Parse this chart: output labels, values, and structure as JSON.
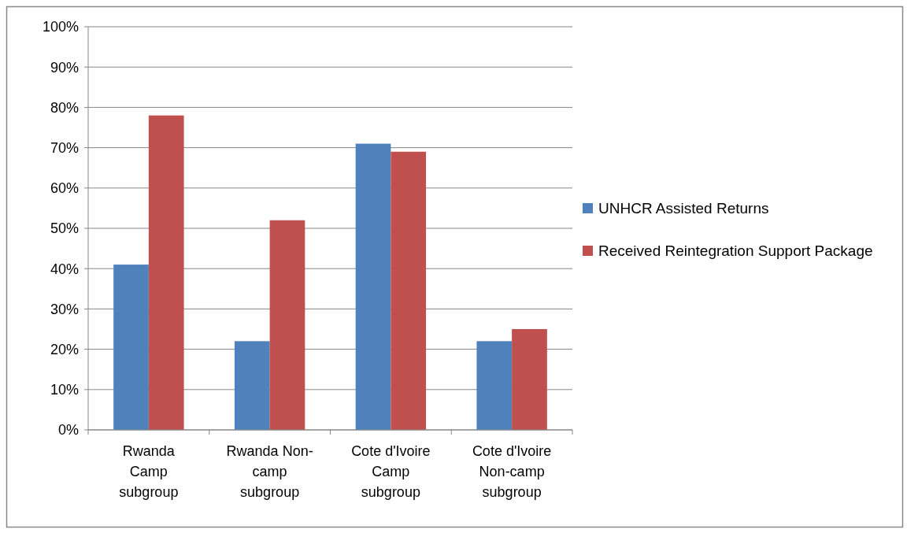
{
  "chart_data": {
    "type": "bar",
    "categories": [
      "Rwanda Camp subgroup",
      "Rwanda Non-camp subgroup",
      "Cote d'Ivoire Camp subgroup",
      "Cote d'Ivoire Non-camp subgroup"
    ],
    "series": [
      {
        "name": "UNHCR Assisted Returns",
        "color": "#4f81bd",
        "values": [
          41,
          22,
          71,
          22
        ]
      },
      {
        "name": "Received Reintegration Support Package",
        "color": "#c0504d",
        "values": [
          78,
          52,
          69,
          25
        ]
      }
    ],
    "ylim": [
      0,
      100
    ],
    "yticks": [
      {
        "value": 0,
        "label": "0%"
      },
      {
        "value": 10,
        "label": "10%"
      },
      {
        "value": 20,
        "label": "20%"
      },
      {
        "value": 30,
        "label": "30%"
      },
      {
        "value": 40,
        "label": "40%"
      },
      {
        "value": 50,
        "label": "50%"
      },
      {
        "value": 60,
        "label": "60%"
      },
      {
        "value": 70,
        "label": "70%"
      },
      {
        "value": 80,
        "label": "80%"
      },
      {
        "value": 90,
        "label": "90%"
      },
      {
        "value": 100,
        "label": "100%"
      }
    ],
    "grid": "y",
    "legend": "right"
  }
}
